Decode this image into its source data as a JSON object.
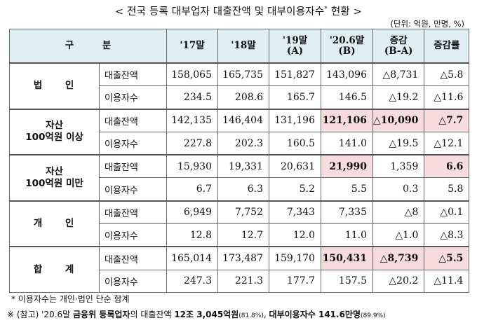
{
  "title": "< 전국 등록 대부업자 대출잔액 및 대부이용자수",
  "title_sup": "*",
  "title_end": "현황 >",
  "unit": "(단위: 억원, 만명, %)",
  "header": {
    "gubun": "구 분",
    "c17": "'17말",
    "c18": "'18말",
    "c19a": "'19말",
    "c19b": "(A)",
    "c20a": "'20.6말",
    "c20b": "(B)",
    "diff_a": "증감",
    "diff_b": "(B-A)",
    "rate": "증감률"
  },
  "groups": [
    {
      "name1": "법 인",
      "name2": "",
      "rows": [
        {
          "label": "대출잔액",
          "v": [
            "158,065",
            "165,735",
            "151,827",
            "143,096",
            "△8,731",
            "△5.8"
          ]
        },
        {
          "label": "이용자수",
          "v": [
            "234.5",
            "208.6",
            "165.7",
            "146.5",
            "△19.2",
            "△11.6"
          ]
        }
      ]
    },
    {
      "name1": "자산",
      "name2": "100억원 이상",
      "rows": [
        {
          "label": "대출잔액",
          "v": [
            "142,135",
            "146,404",
            "131,196",
            "121,106",
            "△10,090",
            "△7.7"
          ]
        },
        {
          "label": "이용자수",
          "v": [
            "227.8",
            "202.3",
            "160.5",
            "141.0",
            "△19.5",
            "△12.1"
          ]
        }
      ]
    },
    {
      "name1": "자산",
      "name2": "100억원 미만",
      "rows": [
        {
          "label": "대출잔액",
          "v": [
            "15,930",
            "19,331",
            "20,631",
            "21,990",
            "1,359",
            "6.6"
          ]
        },
        {
          "label": "이용자수",
          "v": [
            "6.7",
            "6.3",
            "5.2",
            "5.5",
            "0.3",
            "5.8"
          ]
        }
      ]
    },
    {
      "name1": "개 인",
      "name2": "",
      "rows": [
        {
          "label": "대출잔액",
          "v": [
            "6,949",
            "7,752",
            "7,343",
            "7,335",
            "△8",
            "△0.1"
          ]
        },
        {
          "label": "이용자수",
          "v": [
            "12.8",
            "12.7",
            "12.0",
            "11.0",
            "△1.0",
            "△8.3"
          ]
        }
      ]
    },
    {
      "name1": "합 계",
      "name2": "",
      "rows": [
        {
          "label": "대출잔액",
          "v": [
            "165,014",
            "173,487",
            "159,170",
            "150,431",
            "△8,739",
            "△5.5"
          ]
        },
        {
          "label": "이용자수",
          "v": [
            "247.3",
            "221.3",
            "177.7",
            "157.5",
            "△20.2",
            "△11.4"
          ]
        }
      ]
    }
  ],
  "footnote1": "* 이용자수는 개인·법인 단순 합계",
  "footnote2": {
    "a": "※ (참고) '20.6말 ",
    "b": "금융위 등록업자",
    "c": "의 대출잔액 ",
    "d": "12조 3,045억원",
    "e": "(81.8%)",
    "f": ", ",
    "g": "대부이용자수 141.6만명",
    "h": "(89.9%)"
  },
  "colors": {
    "header_bg": "#dfeef0",
    "highlight_bg": "#f6dcdf",
    "border": "#6b6b6b"
  }
}
